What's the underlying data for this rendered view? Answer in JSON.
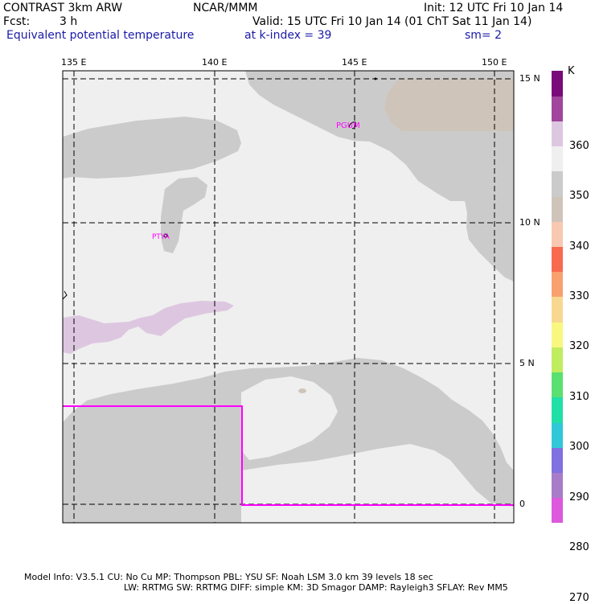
{
  "header": {
    "model": "CONTRAST  3km ARW",
    "org": "NCAR/MMM",
    "init": "Init: 12 UTC Fri 10 Jan 14",
    "fcst_label": "Fcst:",
    "fcst_value": "3 h",
    "valid": "Valid: 15 UTC Fri 10 Jan 14 (01 ChT Sat 11 Jan 14)",
    "field": "Equivalent potential temperature",
    "level": "at k-index =  39",
    "smooth": "sm= 2"
  },
  "map": {
    "lon_labels": [
      "135 E",
      "140 E",
      "145 E",
      "150 E"
    ],
    "lat_labels": [
      "15 N",
      "10 N",
      "5 N",
      "0"
    ],
    "stations": [
      "PGUM",
      "PTYA"
    ],
    "colors": {
      "ocean": "#efefef",
      "region_350": "#cbcbcb",
      "region_340": "#cfc4b9",
      "region_360": "#ddc7e0",
      "boundary": "#ff00ff"
    }
  },
  "colorbar": {
    "unit": "K",
    "labels": [
      "360",
      "350",
      "340",
      "330",
      "320",
      "310",
      "300",
      "290",
      "280",
      "270"
    ],
    "colors": [
      "#dc58dc",
      "#a87cc8",
      "#8070e0",
      "#30c8d8",
      "#20e0a8",
      "#5ae070",
      "#c0ec60",
      "#f8f880",
      "#f8d890",
      "#f8a070",
      "#f86a50",
      "#f8c8b0",
      "#cfc4b9",
      "#cbcbcb",
      "#efefef",
      "#ddc7e0",
      "#a0469c",
      "#7a0a7a"
    ]
  },
  "footer": {
    "line1": "Model Info: V3.5.1    CU: No Cu     MP: Thompson     PBL: YSU       SF: Noah LSM     3.0 km   39 levels    18 sec",
    "line2": "LW: RRTMG    SW: RRTMG   DIFF: simple KM: 3D Smagor DAMP: Rayleigh3  SFLAY: Rev MM5"
  }
}
